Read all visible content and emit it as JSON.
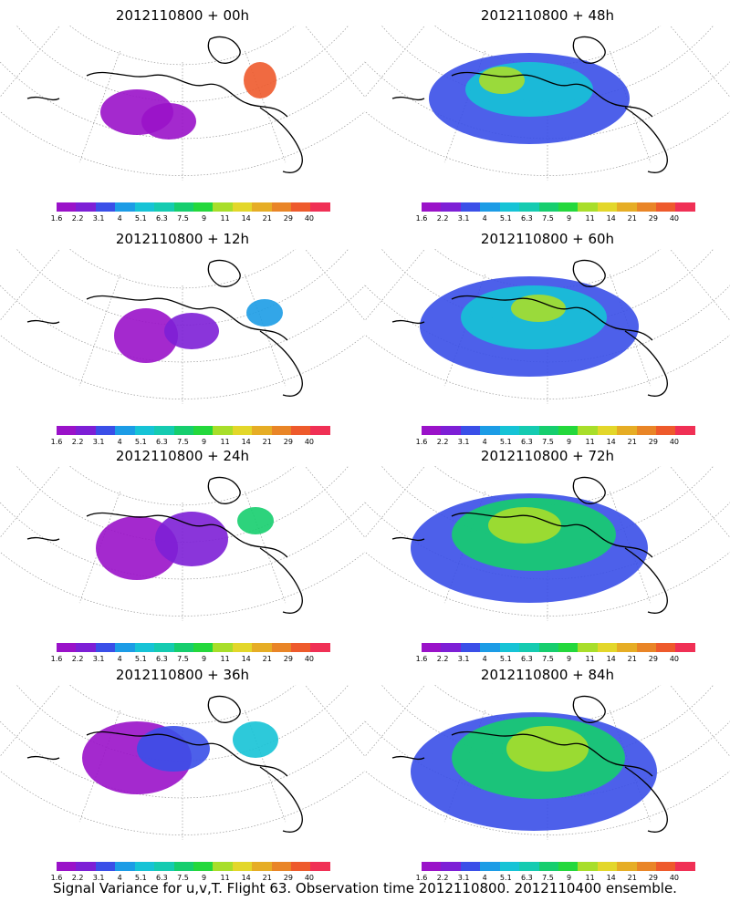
{
  "panels": [
    {
      "title": "2012110800 + 00h"
    },
    {
      "title": "2012110800 + 12h"
    },
    {
      "title": "2012110800 + 24h"
    },
    {
      "title": "2012110800 + 36h"
    },
    {
      "title": "2012110800 + 48h"
    },
    {
      "title": "2012110800 + 60h"
    },
    {
      "title": "2012110800 + 72h"
    },
    {
      "title": "2012110800 + 84h"
    }
  ],
  "colorbar": {
    "colors": [
      "#9a12c9",
      "#7d1fd6",
      "#3a4fe8",
      "#1c9ce6",
      "#16c3d6",
      "#15cbb1",
      "#16ce6e",
      "#24d83c",
      "#a8de2a",
      "#e3d72a",
      "#e6ad25",
      "#e98527",
      "#ee5a2c",
      "#f03055"
    ],
    "labels": [
      "1.6",
      "2.2",
      "3.1",
      "4",
      "5.1",
      "6.3",
      "7.5",
      "9",
      "11",
      "14",
      "21",
      "29",
      "40"
    ]
  },
  "caption": "Signal Variance for u,v,T. Flight 63. Observation time 2012110800. 2012110400 ensemble."
}
